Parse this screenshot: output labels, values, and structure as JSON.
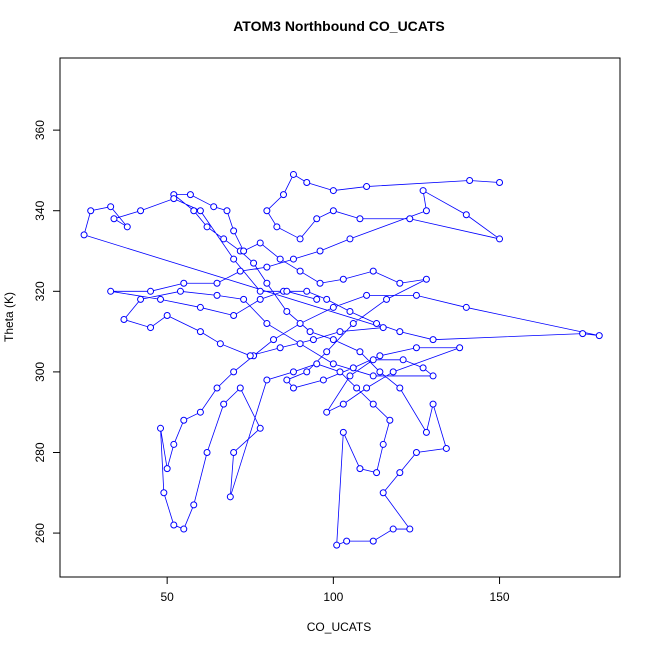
{
  "chart_data": {
    "type": "line",
    "title": "ATOM3 Northbound CO_UCATS",
    "x_label": "CO_UCATS",
    "y_label": "Theta (K)",
    "color": "#0000ff",
    "markers": true,
    "x": [
      150,
      141,
      110,
      100,
      92,
      88,
      85,
      80,
      83,
      90,
      95,
      100,
      108,
      123,
      150,
      140,
      127,
      128,
      105,
      96,
      88,
      80,
      72,
      65,
      55,
      45,
      33,
      48,
      60,
      70,
      78,
      85,
      92,
      98,
      105,
      113,
      120,
      130,
      175,
      180,
      140,
      125,
      110,
      100,
      90,
      82,
      76,
      70,
      65,
      60,
      55,
      52,
      50,
      48,
      49,
      52,
      55,
      58,
      62,
      67,
      72,
      78,
      70,
      69,
      80,
      88,
      95,
      102,
      107,
      112,
      117,
      115,
      113,
      108,
      103,
      101,
      104,
      112,
      118,
      123,
      115,
      120,
      125,
      134,
      130,
      128,
      120,
      114,
      108,
      100,
      93,
      86,
      80,
      76,
      72,
      67,
      62,
      58,
      52,
      57,
      64,
      68,
      70,
      73,
      78,
      84,
      90,
      96,
      103,
      112,
      120,
      128,
      116,
      106,
      98,
      92,
      86,
      88,
      97,
      106,
      114,
      125,
      138,
      118,
      110,
      103,
      98,
      105,
      112,
      121,
      127,
      130,
      112,
      100,
      90,
      80,
      73,
      65,
      54,
      42,
      37,
      45,
      50,
      60,
      66,
      75,
      84,
      94,
      102,
      115,
      25,
      27,
      33,
      38,
      34,
      42,
      52,
      60,
      70,
      78,
      86,
      95
    ],
    "values": [
      347,
      347.5,
      346,
      345,
      347,
      349,
      344,
      340,
      336,
      333,
      338,
      340,
      338,
      338,
      333,
      339,
      345,
      340,
      333,
      330,
      328,
      326,
      325,
      322,
      322,
      320,
      320,
      318,
      316,
      314,
      318,
      320,
      320,
      318,
      315,
      312,
      310,
      308,
      309.5,
      309,
      316,
      319,
      319,
      316,
      312,
      308,
      304,
      300,
      296,
      290,
      288,
      282,
      276,
      286,
      270,
      262,
      261,
      267,
      280,
      292,
      296,
      286,
      280,
      269,
      298,
      300,
      302,
      300,
      296,
      292,
      288,
      282,
      275,
      276,
      285,
      257,
      258,
      258,
      261,
      261,
      270,
      275,
      280,
      281,
      292,
      285,
      296,
      300,
      305,
      308,
      310,
      315,
      322,
      327,
      330,
      333,
      336,
      340,
      344,
      344,
      341,
      340,
      335,
      330,
      332,
      328,
      325,
      322,
      323,
      325,
      322,
      323,
      318,
      312,
      305,
      300,
      298,
      296,
      298,
      301,
      304,
      306,
      306,
      300,
      296,
      292,
      290,
      299,
      303,
      303,
      301,
      299,
      299,
      302,
      307,
      312,
      318,
      319,
      320,
      318,
      313,
      311,
      314,
      310,
      307,
      304,
      306,
      308,
      310,
      311,
      334,
      340,
      341,
      336,
      338,
      340,
      343,
      340,
      328,
      320,
      320,
      318
    ],
    "xlim": [
      17.76,
      186.24
    ],
    "ylim": [
      249.1,
      377.9
    ],
    "xticks": [
      50,
      100,
      150
    ],
    "yticks": [
      260,
      280,
      300,
      320,
      340,
      360
    ]
  }
}
